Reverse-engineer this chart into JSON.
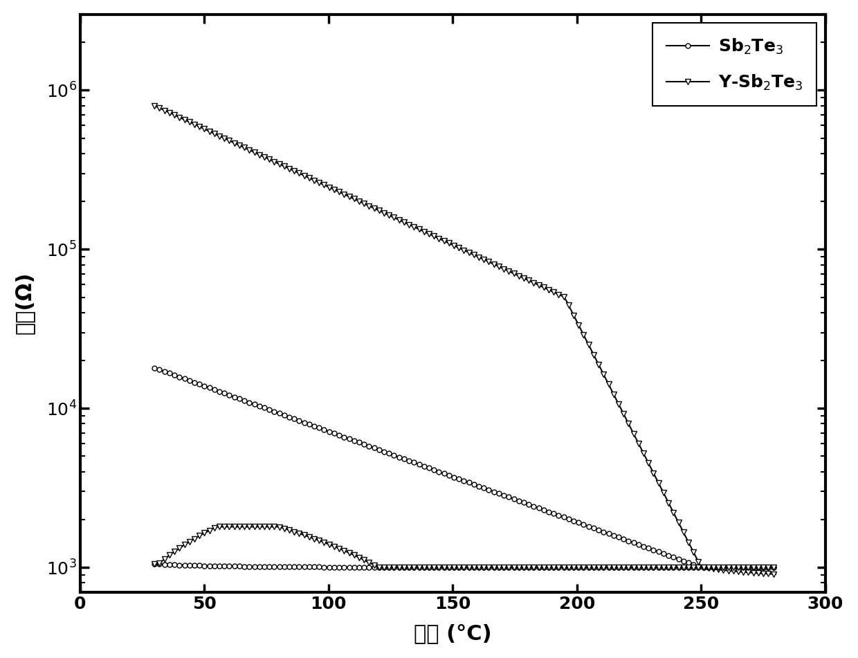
{
  "title": "",
  "xlabel": "温度 (°C)",
  "ylabel": "电阻(Ω)",
  "xlim": [
    0,
    300
  ],
  "ylim_log": [
    700,
    3000000
  ],
  "xticks": [
    0,
    50,
    100,
    150,
    200,
    250,
    300
  ],
  "background_color": "#ffffff",
  "line_color": "#000000",
  "legend_label1": "Sb$_2$Te$_3$",
  "legend_label2": "Y-Sb$_2$Te$_3$",
  "sb2te3_heat_start_T": 30,
  "sb2te3_heat_start_R": 18000,
  "sb2te3_heat_end_T": 250,
  "sb2te3_heat_end_R": 1000,
  "sb2te3_cool_R": 1000,
  "ysb2te3_heat_start_T": 30,
  "ysb2te3_heat_start_R": 800000,
  "ysb2te3_heat_knee_T": 195,
  "ysb2te3_heat_knee_R": 50000,
  "ysb2te3_heat_end_T": 250,
  "ysb2te3_heat_end_R": 1000,
  "ysb2te3_cool_flat_R": 1000,
  "ysb2te3_cool_bump_T": 55,
  "ysb2te3_cool_bump_R": 1800,
  "markevery": 1,
  "markersize_circle": 5,
  "markersize_triangle": 6,
  "linewidth": 1.5,
  "num_points": 250
}
